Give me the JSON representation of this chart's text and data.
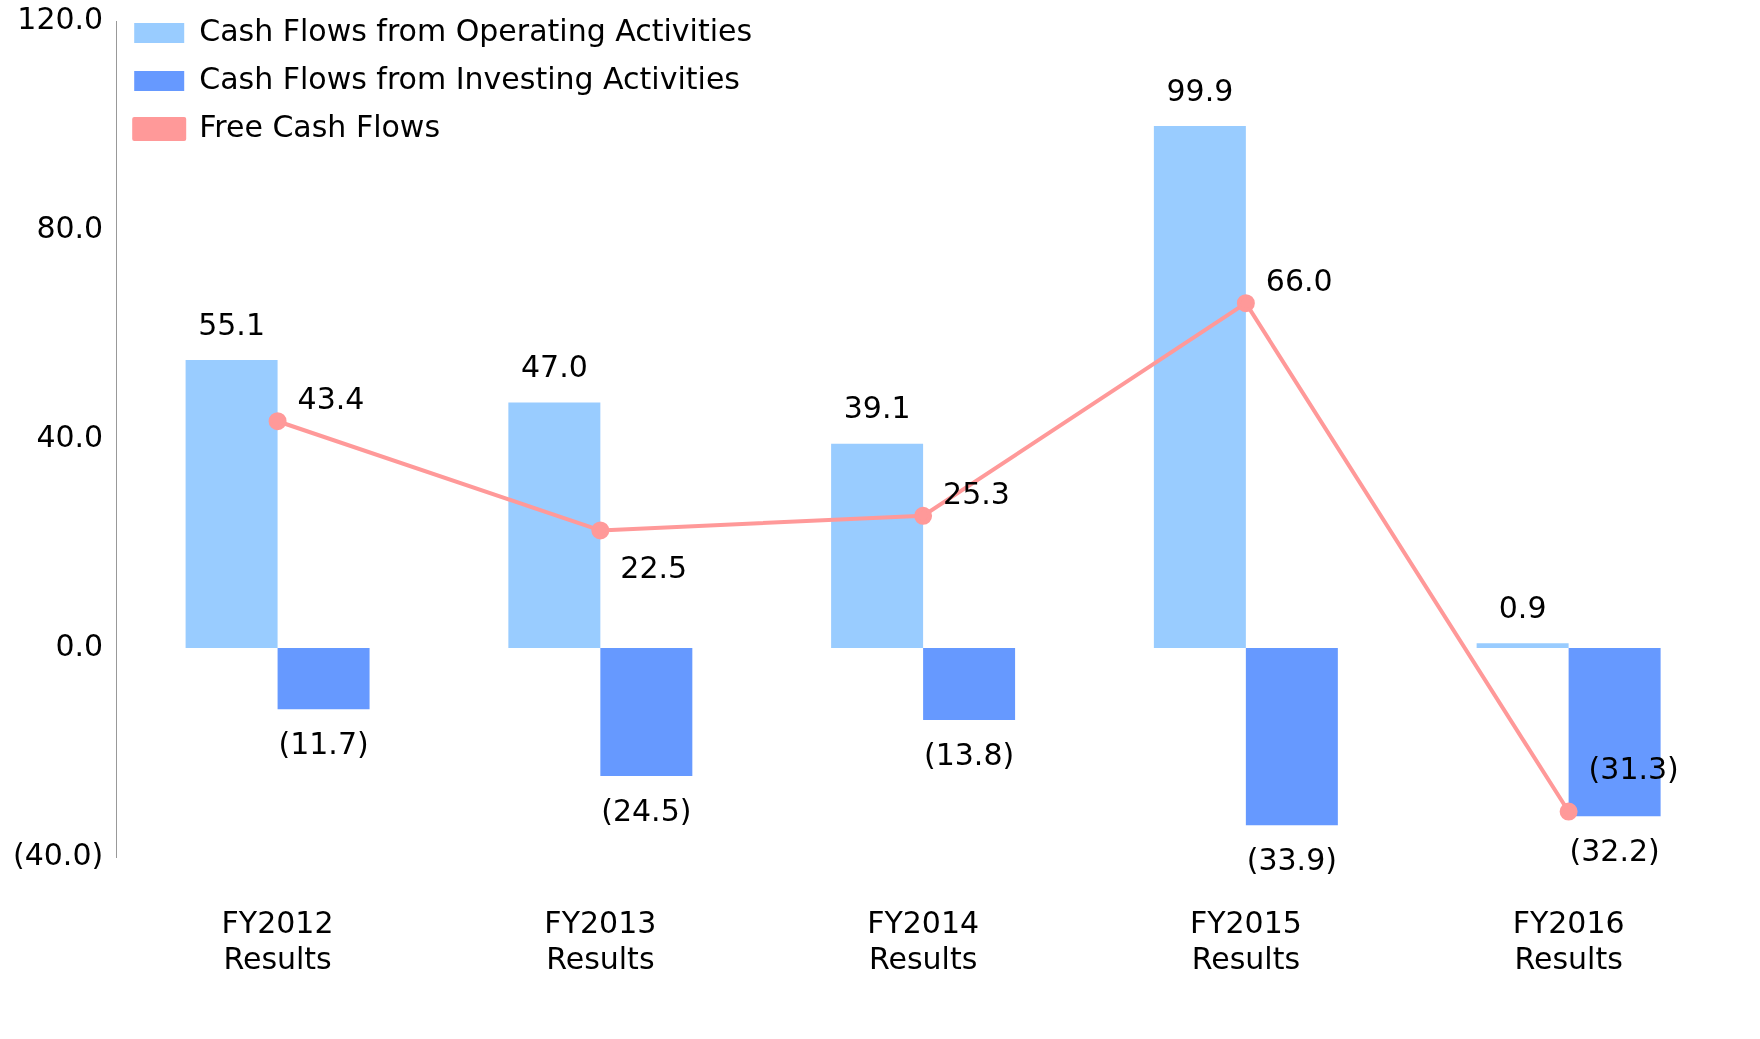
{
  "chart_data": {
    "type": "bar",
    "categories": [
      "FY2012\nResults",
      "FY2013\nResults",
      "FY2014\nResults",
      "FY2015\nResults",
      "FY2016\nResults"
    ],
    "series": [
      {
        "name": "Cash Flows from Operating Activities",
        "color": "#99ccff",
        "values": [
          55.1,
          47.0,
          39.1,
          99.9,
          0.9
        ],
        "value_labels": [
          "55.1",
          "47.0",
          "39.1",
          "99.9",
          "0.9"
        ]
      },
      {
        "name": "Cash Flows from Investing Activities",
        "color": "#6699ff",
        "values": [
          -11.7,
          -24.5,
          -13.8,
          -33.9,
          -32.2
        ],
        "value_labels": [
          "(11.7)",
          "(24.5)",
          "(13.8)",
          "(33.9)",
          "(32.2)"
        ]
      },
      {
        "name": "Free Cash Flows",
        "type": "line",
        "color": "#ff9999",
        "values": [
          43.4,
          22.5,
          25.3,
          66.0,
          -31.3
        ],
        "value_labels": [
          "43.4",
          "22.5",
          "25.3",
          "66.0",
          "(31.3)"
        ]
      }
    ],
    "ylim": [
      -40,
      120
    ],
    "yticks": [
      {
        "value": -40,
        "label": "(40.0)"
      },
      {
        "value": 0,
        "label": "0.0"
      },
      {
        "value": 40,
        "label": "40.0"
      },
      {
        "value": 80,
        "label": "80.0"
      },
      {
        "value": 120,
        "label": "120.0"
      }
    ],
    "grid": false,
    "legend": "top left",
    "marker": "circle",
    "line_style": "solid"
  }
}
